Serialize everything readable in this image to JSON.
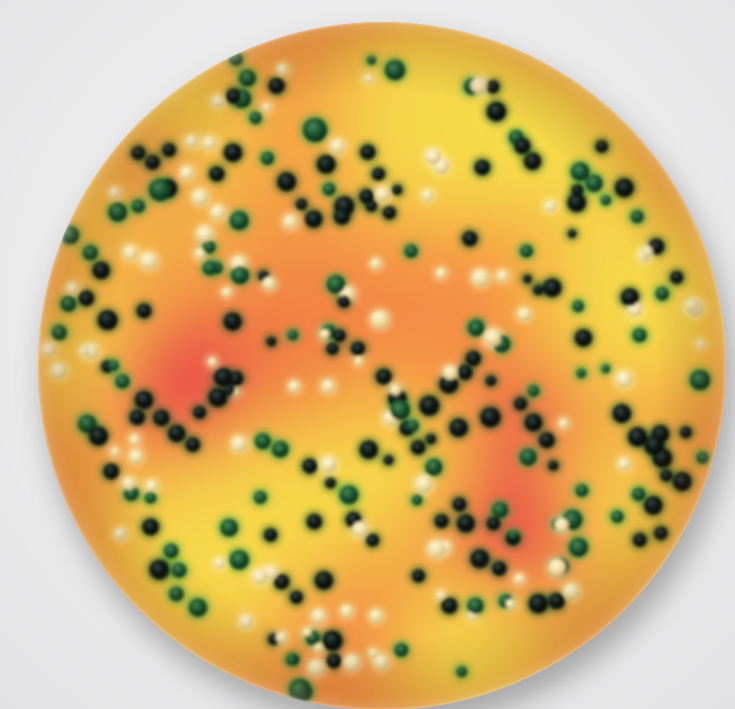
{
  "image": {
    "subject": "petri-dish",
    "colors": {
      "background": "#eeeeef",
      "agar_orange": "#f39a45",
      "agar_yellow": "#f7e24a",
      "agar_magenta": "#e8344a",
      "colony_dark": "#121c1a",
      "colony_green": "#1f6b3a",
      "colony_pale": "#e9d9a0"
    }
  }
}
